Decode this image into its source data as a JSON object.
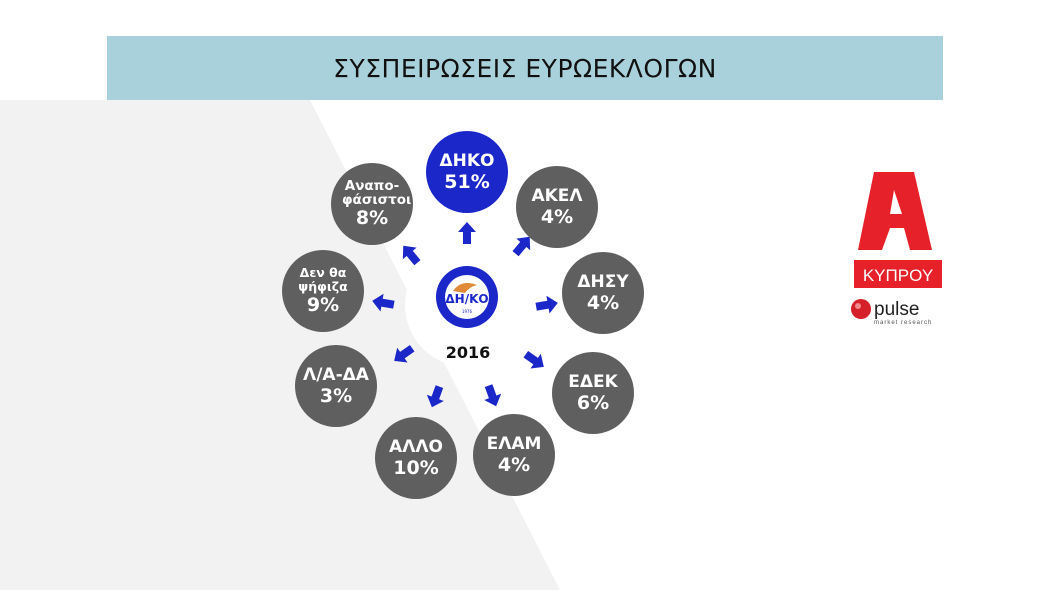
{
  "title": "ΣΥΣΠΕΙΡΩΣΕΙΣ ΕΥΡΩΕΚΛΟΓΩΝ",
  "center": {
    "year": "2016",
    "logo_text": "ΔΗΚΟ",
    "logo_ring": "ΕΛΕΥΘΕΡΙΑ ΔΙΚΑΙΟΣΥΝΗ ΔΗΜΟΚΡΑΤΙΑ",
    "logo_year": "1976"
  },
  "items": [
    {
      "label": "ΔΗΚΟ",
      "value": "51%"
    },
    {
      "label": "ΑΚΕΛ",
      "value": "4%"
    },
    {
      "label": "ΔΗΣΥ",
      "value": "4%"
    },
    {
      "label": "ΕΔΕΚ",
      "value": "6%"
    },
    {
      "label": "ΕΛΑΜ",
      "value": "4%"
    },
    {
      "label": "ΑΛΛΟ",
      "value": "10%"
    },
    {
      "label": "Λ/Α-ΔΑ",
      "value": "3%"
    },
    {
      "label": "Δεν θα ψήφιζα",
      "value": "9%"
    },
    {
      "label": "Αναπο- φάσιστοι",
      "value": "8%"
    }
  ],
  "brand": {
    "channel": "ΚΥΠΡΟΥ",
    "pulse": "pulse",
    "pulse_sub": "market research"
  },
  "colors": {
    "header": "#a9d1db",
    "highlight": "#1c27c9",
    "circle": "#5f5f5f",
    "arrow": "#1c27c9",
    "brand_red": "#e62129"
  }
}
